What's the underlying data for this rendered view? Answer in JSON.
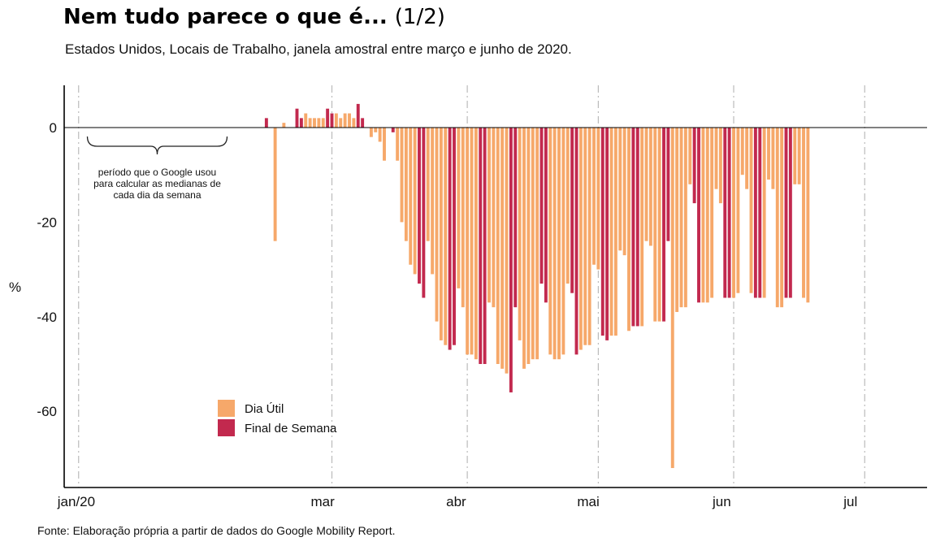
{
  "title": "Nem tudo parece o que é...",
  "title_part": "(1/2)",
  "subtitle": "Estados Unidos, Locais de Trabalho, janela amostral entre março e junho de 2020.",
  "source": "Fonte: Elaboração própria a partir de dados do Google Mobility Report.",
  "colors": {
    "weekday": "#F6A86A",
    "weekend": "#C2294E",
    "axis": "#000000",
    "guide": "#BBBBBB"
  },
  "chart_data": {
    "type": "bar",
    "xlabel": "",
    "ylabel": "%",
    "ylim": [
      -75,
      9
    ],
    "xlim": [
      "2020-01-01",
      "2020-07-04"
    ],
    "x_ticks": [
      {
        "label": "jan/20",
        "date": "2020-01-03"
      },
      {
        "label": "mar",
        "date": "2020-03-01"
      },
      {
        "label": "abr",
        "date": "2020-04-01"
      },
      {
        "label": "mai",
        "date": "2020-05-01"
      },
      {
        "label": "jun",
        "date": "2020-06-01"
      },
      {
        "label": "jul",
        "date": "2020-07-01"
      }
    ],
    "y_ticks": [
      0,
      -20,
      -40,
      -60
    ],
    "grid": "vertical dashed lines at month ticks",
    "legend": {
      "position": "bottom-left",
      "entries": [
        {
          "label": "Dia Útil",
          "category": "weekday"
        },
        {
          "label": "Final de Semana",
          "category": "weekend"
        }
      ]
    },
    "annotation": {
      "lines": [
        "período que o Google usou",
        "para calcular as medianas de",
        "cada dia da semana"
      ],
      "bracket_from": "2020-01-05",
      "bracket_to": "2020-02-06"
    },
    "start_date": "2020-02-15",
    "series": [
      {
        "category": "weekend",
        "dates": [
          "2020-02-15",
          "2020-02-22",
          "2020-02-23",
          "2020-02-29",
          "2020-03-01",
          "2020-03-07",
          "2020-03-08",
          "2020-03-14",
          "2020-03-15",
          "2020-03-21",
          "2020-03-22",
          "2020-03-28",
          "2020-03-29",
          "2020-04-04",
          "2020-04-05",
          "2020-04-11",
          "2020-04-12",
          "2020-04-18",
          "2020-04-19",
          "2020-04-25",
          "2020-04-26",
          "2020-05-02",
          "2020-05-03",
          "2020-05-09",
          "2020-05-10",
          "2020-05-16",
          "2020-05-17",
          "2020-05-23",
          "2020-05-24",
          "2020-05-30",
          "2020-05-31",
          "2020-06-06",
          "2020-06-07",
          "2020-06-13",
          "2020-06-14",
          "2020-06-20",
          "2020-06-21",
          "2020-06-27",
          "2020-06-28"
        ]
      }
    ],
    "values": [
      2,
      0,
      -24,
      0,
      1,
      0,
      0,
      4,
      2,
      3,
      2,
      2,
      2,
      2,
      4,
      3,
      3,
      2,
      3,
      3,
      2,
      5,
      2,
      0,
      -2,
      -1,
      -3,
      -7,
      0,
      -1,
      -7,
      -20,
      -24,
      -29,
      -31,
      -33,
      -36,
      -24,
      -31,
      -41,
      -45,
      -46,
      -47,
      -46,
      -34,
      -38,
      -48,
      -48,
      -49,
      -50,
      -50,
      -37,
      -38,
      -50,
      -51,
      -52,
      -56,
      -38,
      -45,
      -51,
      -50,
      -49,
      -49,
      -33,
      -37,
      -48,
      -49,
      -49,
      -48,
      -33,
      -35,
      -48,
      -47,
      -46,
      -46,
      -29,
      -30,
      -44,
      -45,
      -44,
      -44,
      -26,
      -27,
      -43,
      -42,
      -42,
      -42,
      -24,
      -25,
      -41,
      -41,
      -41,
      -24,
      -72,
      -39,
      -38,
      -38,
      -12,
      -16,
      -37,
      -37,
      -37,
      -36,
      -13,
      -16,
      -36,
      -36,
      -36,
      -35,
      -10,
      -13,
      -35,
      -36,
      -36,
      -36,
      -11,
      -13,
      -38,
      -38,
      -36,
      -36,
      -12,
      -12,
      -36,
      -37
    ]
  }
}
